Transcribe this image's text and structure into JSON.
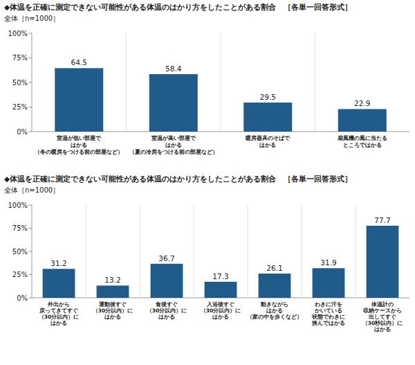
{
  "chart_data": [
    {
      "type": "bar",
      "title": "◆体温を正確に測定できない可能性がある体温のはかり方をしたことがある割合　［各単一回答形式］",
      "subtitle": "全体［n=1000］",
      "categories": [
        "室温が低い部屋で\nはかる\n（冬の暖房をつける前の部屋など）",
        "室温が高い部屋で\nはかる\n（夏の冷房をつける前の部屋など）",
        "暖房器具のそばで\nはかる",
        "扇風機の風に当たる\nところではかる"
      ],
      "values": [
        64.5,
        58.4,
        29.5,
        22.9
      ],
      "color": "#1f5c8b",
      "ylim": [
        0,
        100
      ],
      "yticks": [
        {
          "value": 0,
          "label": "0%"
        },
        {
          "value": 25,
          "label": "25%"
        },
        {
          "value": 50,
          "label": "50%"
        },
        {
          "value": 75,
          "label": "75%"
        },
        {
          "value": 100,
          "label": "100%"
        }
      ],
      "data_labels": true,
      "grid": false
    },
    {
      "type": "bar",
      "title": "◆体温を正確に測定できない可能性がある体温のはかり方をしたことがある割合　［各単一回答形式］",
      "subtitle": "全体［n=1000］",
      "categories": [
        "外出から\n戻ってきてすぐ\n（30分以内）に\nはかる",
        "運動後すぐ\n（30分以内）に\nはかる",
        "食後すぐ\n（30分以内）に\nはかる",
        "入浴後すぐ\n（30分以内）に\nはかる",
        "動きながら\nはかる\n（家の中を歩くなど）",
        "わきに汗を\nかいている\n状態でわきに\n挟んではかる",
        "体温計の\n収納ケースから\n出してすぐ\n（30秒以内）に\nはかる"
      ],
      "values": [
        31.2,
        13.2,
        36.7,
        17.3,
        26.1,
        31.9,
        77.7
      ],
      "color": "#1f5c8b",
      "ylim": [
        0,
        100
      ],
      "yticks": [
        {
          "value": 0,
          "label": "0%"
        },
        {
          "value": 25,
          "label": "25%"
        },
        {
          "value": 50,
          "label": "50%"
        },
        {
          "value": 75,
          "label": "75%"
        },
        {
          "value": 100,
          "label": "100%"
        }
      ],
      "data_labels": true,
      "grid": false
    }
  ]
}
